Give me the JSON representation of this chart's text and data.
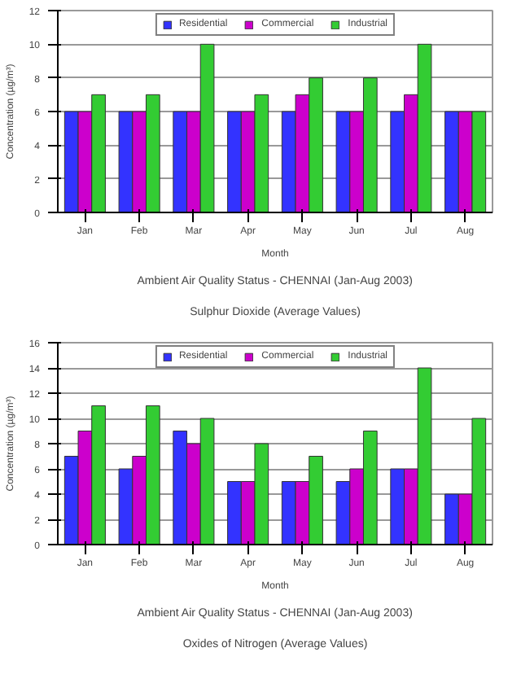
{
  "chart_data": [
    {
      "type": "bar",
      "title": "Ambient Air Quality Status - CHENNAI (Jan-Aug 2003)",
      "subtitle": "Sulphur Dioxide (Average Values)",
      "xlabel": "Month",
      "ylabel": "Concentration (µg/m³)",
      "categories": [
        "Jan",
        "Feb",
        "Mar",
        "Apr",
        "May",
        "Jun",
        "Jul",
        "Aug"
      ],
      "series": [
        {
          "name": "Residential",
          "color": "#3333ff",
          "values": [
            6,
            6,
            6,
            6,
            6,
            6,
            6,
            6
          ]
        },
        {
          "name": "Commercial",
          "color": "#cc00cc",
          "values": [
            6,
            6,
            6,
            6,
            7,
            6,
            7,
            6
          ]
        },
        {
          "name": "Industrial",
          "color": "#33cc33",
          "values": [
            7,
            7,
            10,
            7,
            8,
            8,
            10,
            6
          ]
        }
      ],
      "ylim": [
        0,
        12
      ],
      "yticks": [
        0,
        2,
        4,
        6,
        8,
        10,
        12
      ],
      "grid": "y",
      "legend": "top"
    },
    {
      "type": "bar",
      "title": "Ambient Air Quality Status - CHENNAI (Jan-Aug 2003)",
      "subtitle": "Oxides of Nitrogen (Average Values)",
      "xlabel": "Month",
      "ylabel": "Concentration (µg/m³)",
      "categories": [
        "Jan",
        "Feb",
        "Mar",
        "Apr",
        "May",
        "Jun",
        "Jul",
        "Aug"
      ],
      "series": [
        {
          "name": "Residential",
          "color": "#3333ff",
          "values": [
            7,
            6,
            9,
            5,
            5,
            5,
            6,
            4
          ]
        },
        {
          "name": "Commercial",
          "color": "#cc00cc",
          "values": [
            9,
            7,
            8,
            5,
            5,
            6,
            6,
            4
          ]
        },
        {
          "name": "Industrial",
          "color": "#33cc33",
          "values": [
            11,
            11,
            10,
            8,
            7,
            9,
            14,
            10
          ]
        }
      ],
      "ylim": [
        0,
        16
      ],
      "yticks": [
        0,
        2,
        4,
        6,
        8,
        10,
        12,
        14,
        16
      ],
      "grid": "y",
      "legend": "top"
    }
  ]
}
